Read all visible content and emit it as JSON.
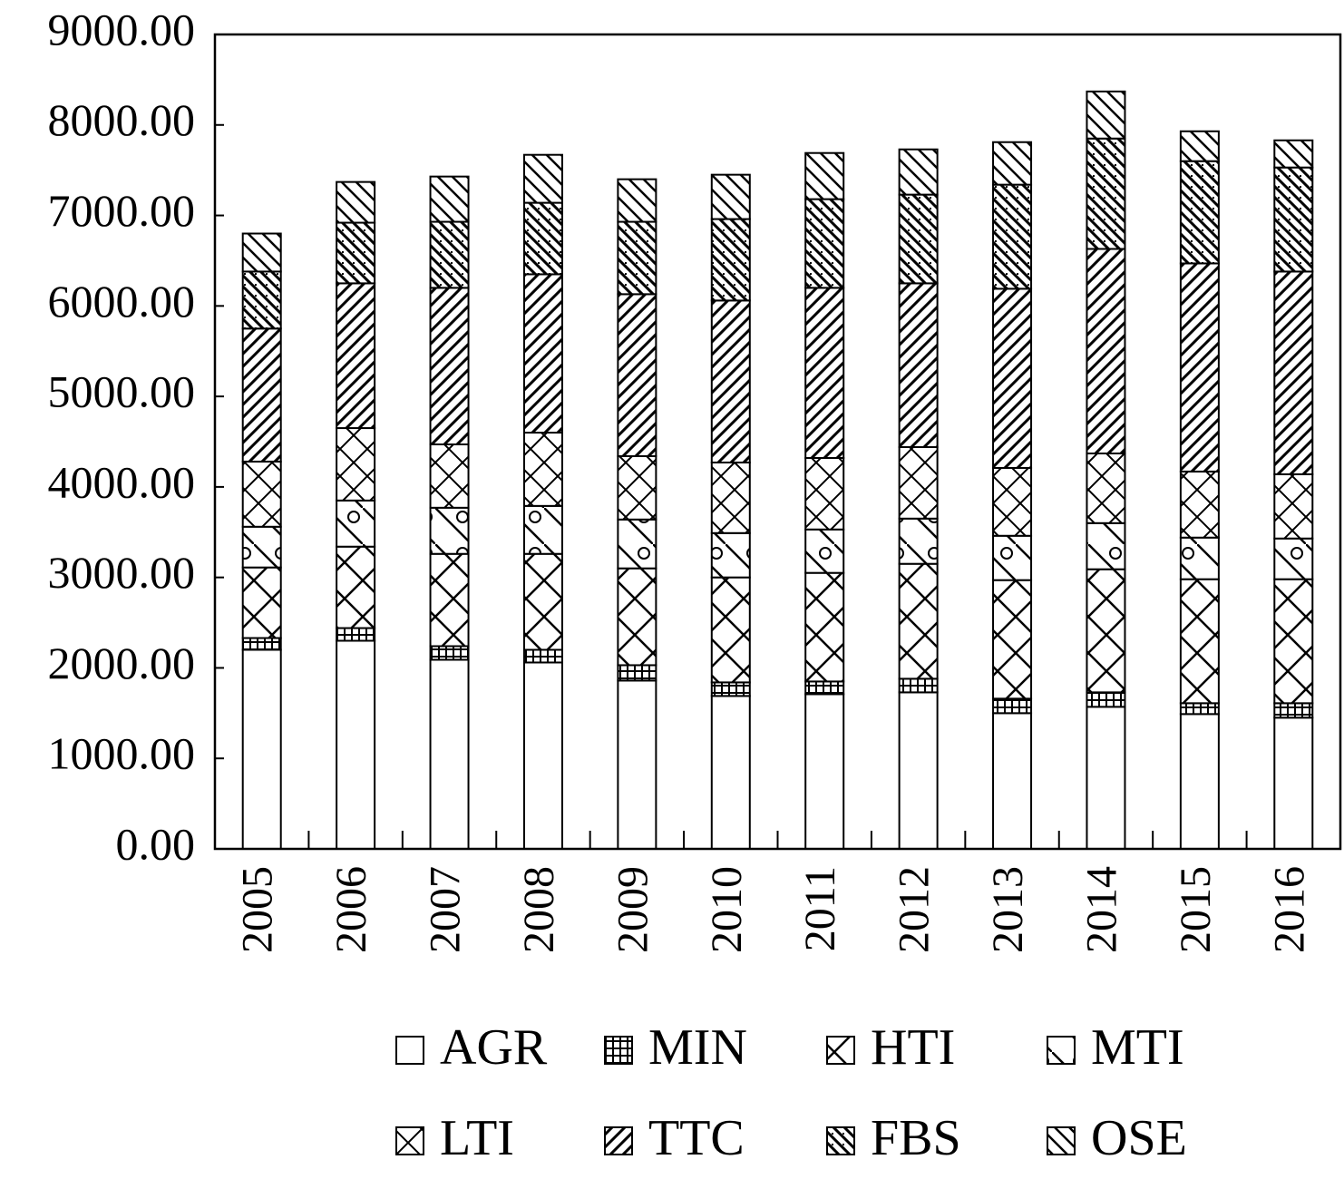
{
  "chart_data": {
    "type": "stacked_bar",
    "categories": [
      "2005",
      "2006",
      "2007",
      "2008",
      "2009",
      "2010",
      "2011",
      "2012",
      "2013",
      "2014",
      "2015",
      "2016"
    ],
    "ylim": [
      0,
      9000
    ],
    "yticks": [
      {
        "value": 0,
        "label": "0.00"
      },
      {
        "value": 1000,
        "label": "1000.00"
      },
      {
        "value": 2000,
        "label": "2000.00"
      },
      {
        "value": 3000,
        "label": "3000.00"
      },
      {
        "value": 4000,
        "label": "4000.00"
      },
      {
        "value": 5000,
        "label": "5000.00"
      },
      {
        "value": 6000,
        "label": "6000.00"
      },
      {
        "value": 7000,
        "label": "7000.00"
      },
      {
        "value": 8000,
        "label": "8000.00"
      },
      {
        "value": 9000,
        "label": "9000.00"
      }
    ],
    "series": [
      {
        "name": "AGR",
        "values": [
          2200,
          2300,
          2090,
          2060,
          1860,
          1690,
          1710,
          1730,
          1500,
          1570,
          1490,
          1450
        ]
      },
      {
        "name": "MIN",
        "values": [
          130,
          140,
          150,
          140,
          170,
          150,
          140,
          150,
          160,
          160,
          120,
          160
        ]
      },
      {
        "name": "HTI",
        "values": [
          780,
          900,
          1020,
          1060,
          1070,
          1160,
          1200,
          1270,
          1310,
          1360,
          1370,
          1370
        ]
      },
      {
        "name": "MTI",
        "values": [
          450,
          510,
          510,
          530,
          540,
          490,
          480,
          500,
          490,
          510,
          460,
          450
        ]
      },
      {
        "name": "LTI",
        "values": [
          720,
          800,
          700,
          810,
          700,
          780,
          790,
          790,
          750,
          770,
          730,
          710
        ]
      },
      {
        "name": "TTC",
        "values": [
          1470,
          1600,
          1730,
          1750,
          1790,
          1790,
          1880,
          1810,
          1980,
          2260,
          2300,
          2240
        ]
      },
      {
        "name": "FBS",
        "values": [
          630,
          670,
          730,
          790,
          800,
          900,
          980,
          980,
          1150,
          1220,
          1130,
          1150
        ]
      },
      {
        "name": "OSE",
        "values": [
          420,
          450,
          500,
          530,
          470,
          490,
          510,
          500,
          470,
          520,
          330,
          300
        ]
      }
    ]
  }
}
